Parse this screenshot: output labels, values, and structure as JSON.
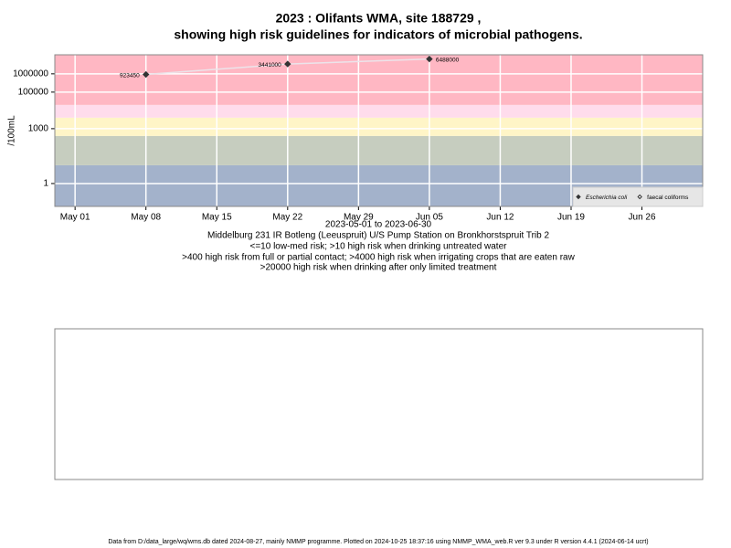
{
  "chart_data": {
    "type": "line",
    "title": "2023 : Olifants WMA, site 188729 ,",
    "subtitle": "showing high risk guidelines for indicators of microbial pathogens.",
    "ylabel": "/100mL",
    "xlabel": "2023-05-01 to 2023-06-30",
    "notes": [
      "Middelburg 231 IR Botleng (Leeuspruit) U/S Pump Station on Bronkhorstspruit Trib 2",
      "<=10 low-med risk; >10 high risk when drinking untreated water",
      ">400 high risk from full or partial contact; >4000 high risk when irrigating crops that are eaten raw",
      ">20000 high risk when drinking after only limited treatment"
    ],
    "x": [
      "2023-05-08",
      "2023-05-22",
      "2023-06-05"
    ],
    "series": [
      {
        "name": "Escherichia coli",
        "color": "#333333",
        "line_color": "#ece4ea",
        "marker": "filled",
        "values": [
          923450,
          3441000,
          6488000
        ]
      },
      {
        "name": "faecal coliforms",
        "color": "#333333",
        "marker": "open",
        "values": [
          null,
          null,
          null
        ]
      }
    ],
    "xlim": [
      "2023-04-29",
      "2023-07-02"
    ],
    "xticks": [
      {
        "value": "2023-05-01",
        "label": "May 01"
      },
      {
        "value": "2023-05-08",
        "label": "May 08"
      },
      {
        "value": "2023-05-15",
        "label": "May 15"
      },
      {
        "value": "2023-05-22",
        "label": "May 22"
      },
      {
        "value": "2023-05-29",
        "label": "May 29"
      },
      {
        "value": "2023-06-05",
        "label": "Jun 05"
      },
      {
        "value": "2023-06-12",
        "label": "Jun 12"
      },
      {
        "value": "2023-06-19",
        "label": "Jun 19"
      },
      {
        "value": "2023-06-26",
        "label": "Jun 26"
      }
    ],
    "ylim": [
      0.056,
      11000000
    ],
    "yticks": [
      1,
      1000,
      100000,
      1000000
    ],
    "log_y": true,
    "grid": true,
    "guidelines": [
      10,
      400,
      4000,
      20000
    ],
    "band_colors": [
      "#a3b2cb",
      "#c6cdbf",
      "#fff5c7",
      "#ffdcec",
      "#ffb7c3"
    ],
    "legend": "bottomright"
  },
  "footer": "Data from D:/data_large/wq/wms.db dated 2024-08-27, mainly NMMP programme. Plotted on 2024-10-25 18:37:16 using NMMP_WMA_web.R ver 9.3 under R version 4.4.1 (2024-06-14 ucrt)"
}
